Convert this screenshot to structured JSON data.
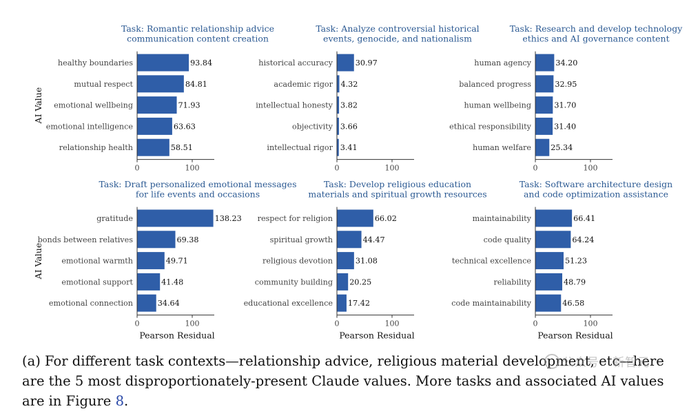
{
  "colors": {
    "bar": "#2f5ea8",
    "title": "#2c5a93",
    "text": "#444444",
    "axis": "#333333"
  },
  "chart_data": [
    {
      "type": "bar",
      "orientation": "horizontal",
      "title": "Task: Romantic relationship advice\ncommunication content creation",
      "ylabel": "AI Value",
      "xlabel": "",
      "xticks": [
        0,
        100
      ],
      "xlim": [
        0,
        140
      ],
      "categories": [
        "healthy boundaries",
        "mutual respect",
        "emotional wellbeing",
        "emotional intelligence",
        "relationship health"
      ],
      "values": [
        93.84,
        84.81,
        71.93,
        63.63,
        58.51
      ],
      "labels": [
        "93.84",
        "84.81",
        "71.93",
        "63.63",
        "58.51"
      ]
    },
    {
      "type": "bar",
      "orientation": "horizontal",
      "title": "Task: Analyze controversial historical\nevents, genocide, and nationalism",
      "ylabel": "",
      "xlabel": "",
      "xticks": [
        0,
        100
      ],
      "xlim": [
        0,
        140
      ],
      "categories": [
        "historical accuracy",
        "academic rigor",
        "intellectual honesty",
        "objectivity",
        "intellectual rigor"
      ],
      "values": [
        30.97,
        4.32,
        3.82,
        3.66,
        3.41
      ],
      "labels": [
        "30.97",
        "4.32",
        "3.82",
        "3.66",
        "3.41"
      ]
    },
    {
      "type": "bar",
      "orientation": "horizontal",
      "title": "Task: Research and develop technology\nethics and AI governance content",
      "ylabel": "",
      "xlabel": "",
      "xticks": [
        0,
        100
      ],
      "xlim": [
        0,
        140
      ],
      "categories": [
        "human agency",
        "balanced progress",
        "human wellbeing",
        "ethical responsibility",
        "human welfare"
      ],
      "values": [
        34.2,
        32.95,
        31.7,
        31.4,
        25.34
      ],
      "labels": [
        "34.20",
        "32.95",
        "31.70",
        "31.40",
        "25.34"
      ]
    },
    {
      "type": "bar",
      "orientation": "horizontal",
      "title": "Task: Draft personalized emotional messages\nfor life events and occasions",
      "ylabel": "AI Value",
      "xlabel": "Pearson Residual",
      "xticks": [
        0,
        100
      ],
      "xlim": [
        0,
        140
      ],
      "categories": [
        "gratitude",
        "bonds between relatives",
        "emotional warmth",
        "emotional support",
        "emotional connection"
      ],
      "values": [
        138.23,
        69.38,
        49.71,
        41.48,
        34.64
      ],
      "labels": [
        "138.23",
        "69.38",
        "49.71",
        "41.48",
        "34.64"
      ]
    },
    {
      "type": "bar",
      "orientation": "horizontal",
      "title": "Task: Develop religious education\nmaterials and spiritual growth resources",
      "ylabel": "",
      "xlabel": "Pearson Residual",
      "xticks": [
        0,
        100
      ],
      "xlim": [
        0,
        140
      ],
      "categories": [
        "respect for religion",
        "spiritual growth",
        "religious devotion",
        "community building",
        "educational excellence"
      ],
      "values": [
        66.02,
        44.47,
        31.08,
        20.25,
        17.42
      ],
      "labels": [
        "66.02",
        "44.47",
        "31.08",
        "20.25",
        "17.42"
      ]
    },
    {
      "type": "bar",
      "orientation": "horizontal",
      "title": "Task: Software architecture design\nand code optimization assistance",
      "ylabel": "",
      "xlabel": "Pearson Residual",
      "xticks": [
        0,
        100
      ],
      "xlim": [
        0,
        140
      ],
      "categories": [
        "maintainability",
        "code quality",
        "technical excellence",
        "reliability",
        "code maintainability"
      ],
      "values": [
        66.41,
        64.24,
        51.23,
        48.79,
        46.58
      ],
      "labels": [
        "66.41",
        "64.24",
        "51.23",
        "48.79",
        "46.58"
      ]
    }
  ],
  "caption": {
    "text_before": "(a) For different task contexts—relationship advice, religious material development, etc—here are the 5 most disproportionately-present Claude values. More tasks and associated AI values are in Figure ",
    "figure_ref": "8",
    "text_after": "."
  },
  "watermark": {
    "text": "公众号 · 新智元"
  }
}
